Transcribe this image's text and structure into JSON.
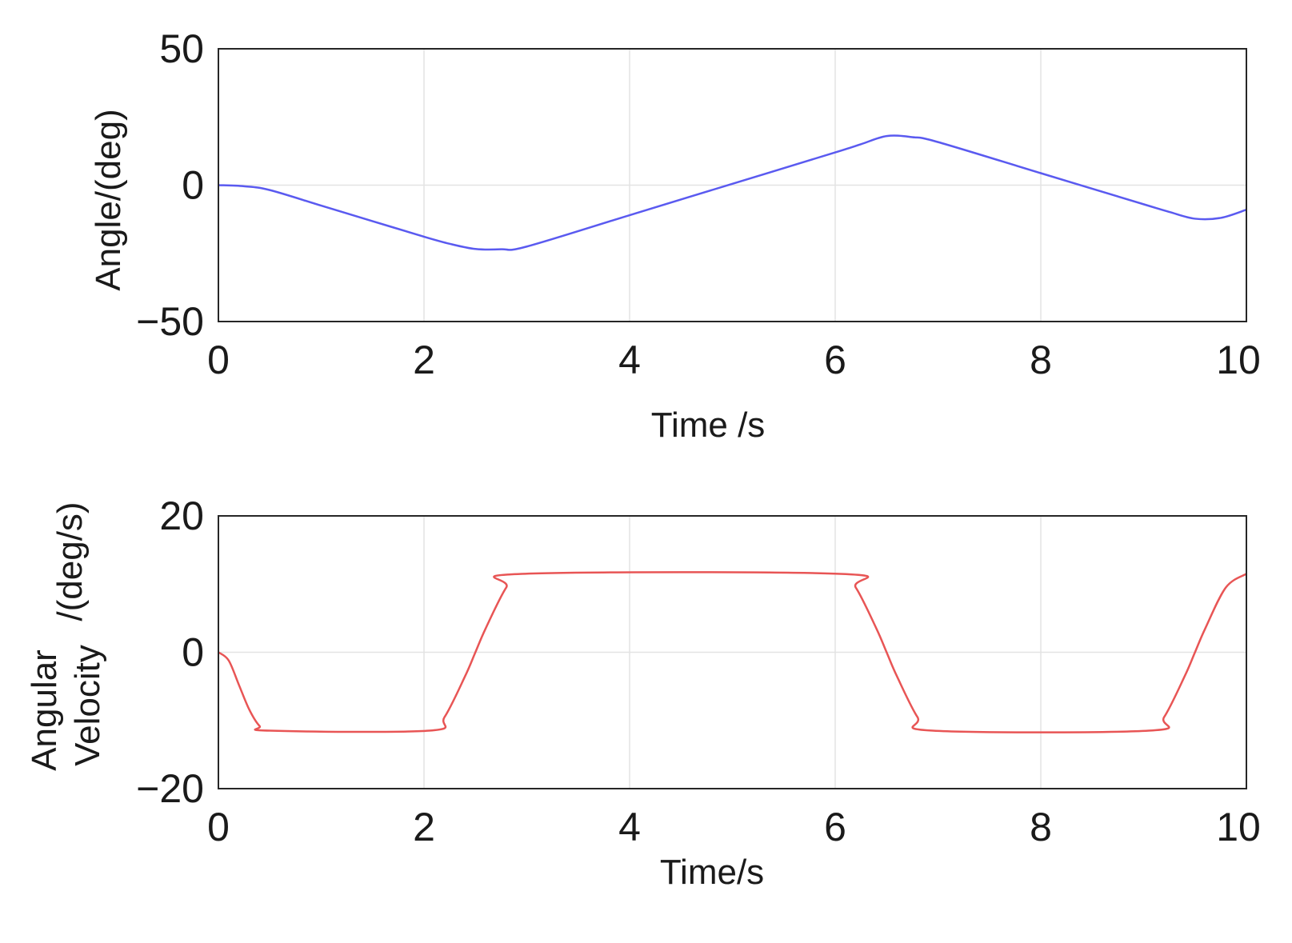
{
  "chart_data": [
    {
      "type": "line",
      "xlabel": "Time /s",
      "ylabel": "Angle/(deg)",
      "xlim": [
        0,
        10
      ],
      "ylim": [
        -50,
        50
      ],
      "xticks": [
        0,
        2,
        4,
        6,
        8,
        10
      ],
      "yticks": [
        50,
        0,
        -50
      ],
      "xtick_labels": [
        "0",
        "2",
        "4",
        "6",
        "8",
        "10"
      ],
      "ytick_labels": [
        "50",
        "0",
        "−50"
      ],
      "grid": true,
      "series": [
        {
          "color": "#5a5af0",
          "x": [
            0,
            0.25,
            0.5,
            1,
            1.5,
            2,
            2.25,
            2.5,
            2.75,
            3,
            4,
            5,
            6,
            6.25,
            6.5,
            6.75,
            7,
            8,
            9,
            9.25,
            9.5,
            9.75,
            10
          ],
          "y": [
            0,
            -0.4,
            -1.8,
            -7.5,
            -13.2,
            -18.9,
            -21.5,
            -23.4,
            -23.5,
            -22.5,
            -11.0,
            0.5,
            12.0,
            15.0,
            18.0,
            17.6,
            15.8,
            4.4,
            -7.0,
            -9.8,
            -12.3,
            -12.0,
            -9.0
          ]
        }
      ]
    },
    {
      "type": "line",
      "xlabel": "Time/s",
      "ylabel": "Angular Velocity/(deg/s)",
      "ylabel_lines": [
        "Angular",
        "Velocity"
      ],
      "ylabel_suffix": "/(deg/s)",
      "xlim": [
        0,
        10
      ],
      "ylim": [
        -20,
        20
      ],
      "xticks": [
        0,
        2,
        4,
        6,
        8,
        10
      ],
      "yticks": [
        20,
        0,
        -20
      ],
      "xtick_labels": [
        "0",
        "2",
        "4",
        "6",
        "8",
        "10"
      ],
      "ytick_labels": [
        "20",
        "0",
        "−20"
      ],
      "grid": true,
      "series": [
        {
          "color": "#e85555",
          "x": [
            0,
            0.1,
            0.2,
            0.3,
            0.4,
            0.5,
            2.05,
            2.2,
            2.4,
            2.5,
            2.6,
            2.8,
            2.95,
            6.05,
            6.2,
            6.4,
            6.5,
            6.6,
            6.8,
            6.95,
            9.05,
            9.2,
            9.4,
            9.5,
            9.6,
            9.8,
            10
          ],
          "y": [
            0,
            -1.2,
            -4.8,
            -8.4,
            -10.8,
            -11.5,
            -11.5,
            -9.5,
            -3.5,
            0,
            3.5,
            9.5,
            11.5,
            11.5,
            9.5,
            3.5,
            0,
            -3.5,
            -9.5,
            -11.5,
            -11.5,
            -9.5,
            -3.5,
            0,
            3.5,
            9.5,
            11.5
          ]
        }
      ]
    }
  ]
}
